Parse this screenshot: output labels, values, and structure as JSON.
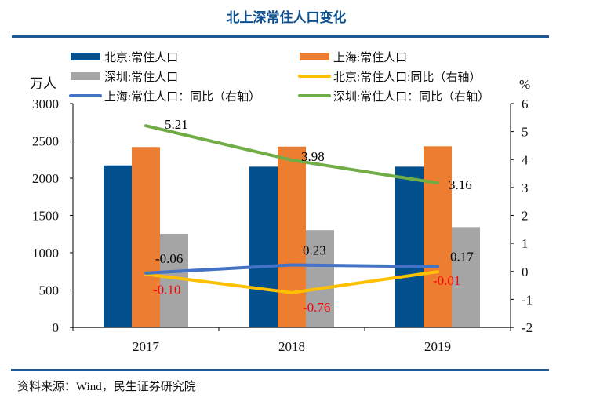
{
  "title": "北上深常住人口变化",
  "source": "资料来源：Wind，民生证券研究院",
  "chart_data": {
    "type": "bar",
    "categories": [
      "2017",
      "2018",
      "2019"
    ],
    "y_left": {
      "label": "万人",
      "range": [
        0,
        3000
      ],
      "ticks": [
        0,
        500,
        1000,
        1500,
        2000,
        2500,
        3000
      ]
    },
    "y_right": {
      "label": "%",
      "range": [
        -2,
        6
      ],
      "ticks": [
        -2,
        -1,
        0,
        1,
        2,
        3,
        4,
        5,
        6
      ]
    },
    "grid": false,
    "legend_position": "top",
    "bar_series": [
      {
        "name": "北京:常住人口",
        "color": "#03508f",
        "values": [
          2171,
          2154,
          2154
        ]
      },
      {
        "name": "上海:常住人口",
        "color": "#ed7d31",
        "values": [
          2418,
          2424,
          2428
        ]
      },
      {
        "name": "深圳:常住人口",
        "color": "#a5a5a5",
        "values": [
          1253,
          1303,
          1344
        ]
      }
    ],
    "line_series": [
      {
        "name": "北京:常住人口:同比（右轴）",
        "color": "#ffc000",
        "values": [
          -0.1,
          -0.76,
          -0.01
        ],
        "label_color": "#ff0000"
      },
      {
        "name": "上海:常住人口：同比（右轴）",
        "color": "#4472c4",
        "values": [
          -0.06,
          0.23,
          0.17
        ],
        "label_color": "#000000"
      },
      {
        "name": "深圳:常住人口：同比（右轴）",
        "color": "#70ad47",
        "values": [
          5.21,
          3.98,
          3.16
        ],
        "label_color": "#000000"
      }
    ],
    "data_labels": {
      "上海": [
        "-0.06",
        "0.23",
        "0.17"
      ],
      "北京": [
        "-0.10",
        "-0.76",
        "-0.01"
      ],
      "深圳": [
        "5.21",
        "3.98",
        "3.16"
      ]
    }
  }
}
